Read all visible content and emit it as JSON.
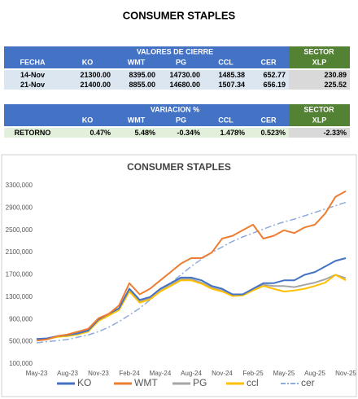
{
  "title": "CONSUMER STAPLES",
  "table1": {
    "group_header": "VALORES DE CIERRE",
    "sector_header": "SECTOR",
    "columns": [
      "FECHA",
      "KO",
      "WMT",
      "PG",
      "CCL",
      "CER",
      "XLP"
    ],
    "rows": [
      [
        "14-Nov",
        "21300.00",
        "8395.00",
        "14730.00",
        "1485.38",
        "652.77",
        "230.89"
      ],
      [
        "21-Nov",
        "21400.00",
        "8855.00",
        "14680.00",
        "1507.34",
        "656.19",
        "225.52"
      ]
    ]
  },
  "table2": {
    "group_header": "VARIACION %",
    "sector_header": "SECTOR",
    "columns": [
      "KO",
      "WMT",
      "PG",
      "CCL",
      "CER",
      "XLP"
    ],
    "rows": [
      [
        "RETORNO",
        "0.47%",
        "5.48%",
        "-0.34%",
        "1.478%",
        "0.523%",
        "-2.33%"
      ]
    ]
  },
  "chart_data": {
    "type": "line",
    "title": "CONSUMER STAPLES",
    "categories": [
      "May-23",
      null,
      null,
      "Aug-23",
      null,
      null,
      "Nov-23",
      null,
      null,
      "Feb-24",
      null,
      null,
      "May-24",
      null,
      null,
      "Aug-24",
      null,
      null,
      "Nov-24",
      null,
      null,
      "Feb-25",
      null,
      null,
      "May-25",
      null,
      null,
      "Aug-25",
      null,
      null,
      "Nov-25"
    ],
    "series": [
      {
        "name": "KO",
        "color": "#4472c4",
        "values": [
          550000,
          560000,
          600000,
          620000,
          650000,
          700000,
          900000,
          1000000,
          1100000,
          1450000,
          1250000,
          1300000,
          1450000,
          1550000,
          1650000,
          1650000,
          1600000,
          1500000,
          1450000,
          1350000,
          1350000,
          1450000,
          1550000,
          1550000,
          1600000,
          1600000,
          1700000,
          1750000,
          1850000,
          1950000,
          2000000
        ]
      },
      {
        "name": "WMT",
        "color": "#ed7d31",
        "values": [
          520000,
          540000,
          600000,
          630000,
          680000,
          730000,
          920000,
          1000000,
          1150000,
          1550000,
          1350000,
          1450000,
          1600000,
          1750000,
          1900000,
          2000000,
          2000000,
          2100000,
          2350000,
          2400000,
          2500000,
          2600000,
          2350000,
          2400000,
          2500000,
          2450000,
          2550000,
          2600000,
          2800000,
          3100000,
          3200000
        ]
      },
      {
        "name": "PG",
        "color": "#a5a5a5",
        "values": [
          540000,
          550000,
          590000,
          610000,
          640000,
          690000,
          880000,
          980000,
          1080000,
          1420000,
          1220000,
          1280000,
          1420000,
          1520000,
          1620000,
          1620000,
          1560000,
          1470000,
          1420000,
          1330000,
          1340000,
          1430000,
          1520000,
          1500000,
          1500000,
          1480000,
          1520000,
          1560000,
          1620000,
          1700000,
          1640000
        ]
      },
      {
        "name": "ccl",
        "color": "#ffc000",
        "values": [
          530000,
          545000,
          585000,
          600000,
          630000,
          680000,
          870000,
          970000,
          1070000,
          1400000,
          1200000,
          1260000,
          1400000,
          1500000,
          1600000,
          1600000,
          1540000,
          1450000,
          1400000,
          1320000,
          1330000,
          1420000,
          1500000,
          1450000,
          1400000,
          1420000,
          1450000,
          1500000,
          1560000,
          1700000,
          1600000
        ]
      },
      {
        "name": "cer",
        "color": "#8faadc",
        "dash": true,
        "values": [
          480000,
          500000,
          520000,
          540000,
          580000,
          620000,
          680000,
          760000,
          860000,
          980000,
          1100000,
          1250000,
          1400000,
          1550000,
          1700000,
          1850000,
          1980000,
          2100000,
          2200000,
          2300000,
          2380000,
          2450000,
          2520000,
          2590000,
          2650000,
          2700000,
          2760000,
          2820000,
          2880000,
          2940000,
          3000000
        ]
      }
    ],
    "ylim": [
      100000,
      3300000
    ],
    "yticks": [
      {
        "value": 100000,
        "label": "100,000"
      },
      {
        "value": 500000,
        "label": "500,000"
      },
      {
        "value": 900000,
        "label": "900,000"
      },
      {
        "value": 1300000,
        "label": "1300,000"
      },
      {
        "value": 1700000,
        "label": "1700,000"
      },
      {
        "value": 2100000,
        "label": "2100,000"
      },
      {
        "value": 2500000,
        "label": "2500,000"
      },
      {
        "value": 2900000,
        "label": "2900,000"
      },
      {
        "value": 3300000,
        "label": "3300,000"
      }
    ],
    "grid": false,
    "legend": "bottom"
  }
}
